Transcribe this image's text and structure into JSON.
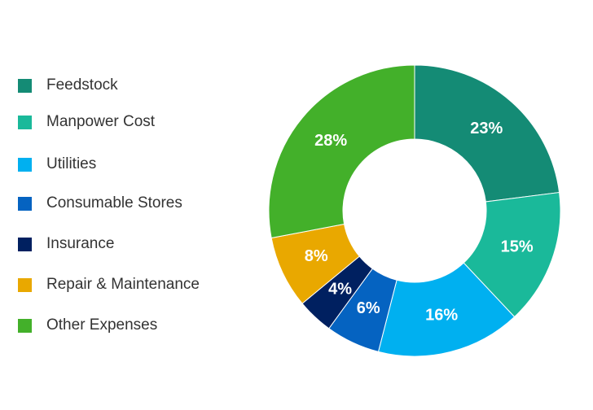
{
  "chart_data": {
    "type": "donut",
    "categories": [
      "Feedstock",
      "Manpower Cost",
      "Utilities",
      "Consumable Stores",
      "Insurance",
      "Repair & Maintenance",
      "Other Expenses"
    ],
    "values": [
      23,
      15,
      16,
      6,
      4,
      8,
      28
    ],
    "value_labels": [
      "23%",
      "15%",
      "16%",
      "6%",
      "4%",
      "8%",
      "28%"
    ],
    "colors": [
      "#148b75",
      "#1ab99a",
      "#00b0f0",
      "#0563c1",
      "#002060",
      "#e9a800",
      "#43b02a"
    ],
    "legend": "left"
  }
}
